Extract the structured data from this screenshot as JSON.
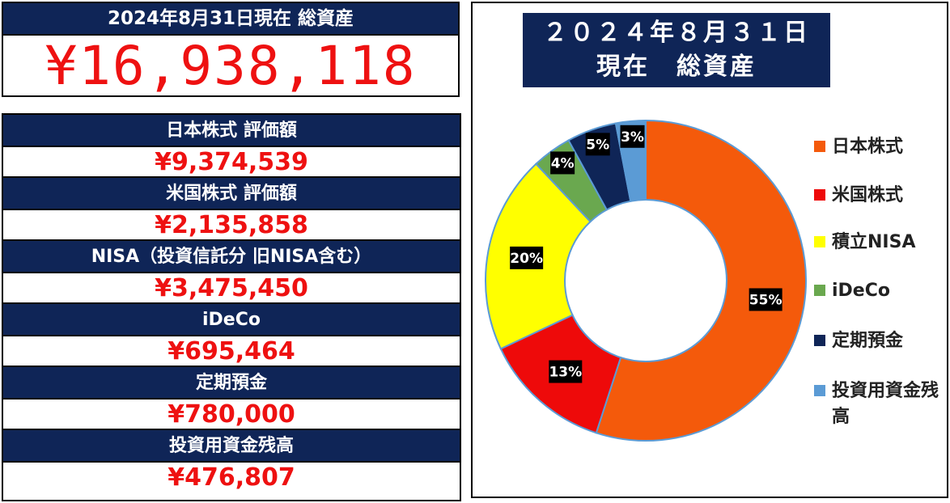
{
  "summary": {
    "header": "2024年8月31日現在 総資産",
    "total": "¥16,938,118"
  },
  "assets": [
    {
      "label": "日本株式 評価額",
      "value": "¥9,374,539"
    },
    {
      "label": "米国株式 評価額",
      "value": "¥2,135,858"
    },
    {
      "label": "NISA（投資信託分 旧NISA含む）",
      "value": "¥3,475,450"
    },
    {
      "label": "iDeCo",
      "value": "¥695,464"
    },
    {
      "label": "定期預金",
      "value": "¥780,000"
    },
    {
      "label": "投資用資金残高",
      "value": "¥476,807"
    }
  ],
  "chart_data": {
    "type": "pie",
    "style": "donut",
    "title_line1": "２０２４年８月３１日",
    "title_line2": "現在　総資産",
    "categories": [
      "日本株式",
      "米国株式",
      "積立NISA",
      "iDeCo",
      "定期預金",
      "投資用資金残高"
    ],
    "values": [
      55,
      13,
      20,
      4,
      5,
      3
    ],
    "data_labels": [
      "55%",
      "13%",
      "20%",
      "4%",
      "5%",
      "3%"
    ],
    "colors": [
      "#f45a0b",
      "#ee0a0a",
      "#ffff00",
      "#6aa84f",
      "#0f2557",
      "#5b9bd5"
    ],
    "legend_position": "right"
  }
}
